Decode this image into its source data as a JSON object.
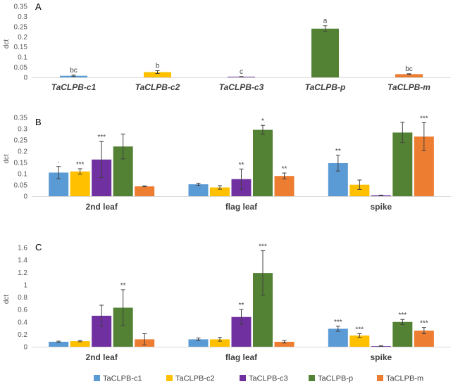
{
  "colors": {
    "TaCLPB-c1": "#5B9BD5",
    "TaCLPB-c2": "#FFC000",
    "TaCLPB-c3": "#7030A0",
    "TaCLPB-p": "#548235",
    "TaCLPB-m": "#ED7D31",
    "axis": "#d9d9d9",
    "text": "#404040"
  },
  "legend": {
    "entries": [
      "TaCLPB-c1",
      "TaCLPB-c2",
      "TaCLPB-c3",
      "TaCLPB-p",
      "TaCLPB-m"
    ]
  },
  "chart_data": [
    {
      "panel": "A",
      "type": "bar",
      "ylabel": "dct",
      "ylim": [
        0,
        0.35
      ],
      "yticks": [
        "0",
        "0.05",
        "0.1",
        "0.15",
        "0.2",
        "0.25",
        "0.3",
        "0.35"
      ],
      "categories": [
        "TaCLPB-c1",
        "TaCLPB-c2",
        "TaCLPB-c3",
        "TaCLPB-p",
        "TaCLPB-m"
      ],
      "values": [
        0.008,
        0.026,
        0.003,
        0.24,
        0.016
      ],
      "errors": [
        0.003,
        0.007,
        0.001,
        0.014,
        0.002
      ],
      "annotations": [
        "bc",
        "b",
        "c",
        "a",
        "bc"
      ]
    },
    {
      "panel": "B",
      "type": "bar",
      "ylabel": "dct",
      "ylim": [
        0,
        0.35
      ],
      "yticks": [
        "0",
        "0.05",
        "0.1",
        "0.15",
        "0.2",
        "0.25",
        "0.3",
        "0.35"
      ],
      "categories": [
        "2nd leaf",
        "flag leaf",
        "spike"
      ],
      "series": [
        {
          "name": "TaCLPB-c1",
          "values": [
            0.105,
            0.053,
            0.147
          ],
          "errors": [
            0.027,
            0.005,
            0.035
          ],
          "annotations": [
            "·",
            "",
            "**"
          ]
        },
        {
          "name": "TaCLPB-c2",
          "values": [
            0.11,
            0.039,
            0.051
          ],
          "errors": [
            0.012,
            0.008,
            0.021
          ],
          "annotations": [
            "***",
            "",
            ""
          ]
        },
        {
          "name": "TaCLPB-c3",
          "values": [
            0.163,
            0.076,
            0.004
          ],
          "errors": [
            0.08,
            0.045,
            0.001
          ],
          "annotations": [
            "***",
            "**",
            ""
          ]
        },
        {
          "name": "TaCLPB-p",
          "values": [
            0.221,
            0.295,
            0.283
          ],
          "errors": [
            0.055,
            0.02,
            0.045
          ],
          "annotations": [
            "",
            "*",
            ""
          ]
        },
        {
          "name": "TaCLPB-m",
          "values": [
            0.044,
            0.09,
            0.265
          ],
          "errors": [
            0.002,
            0.013,
            0.062
          ],
          "annotations": [
            "",
            "**",
            "***"
          ]
        }
      ]
    },
    {
      "panel": "C",
      "type": "bar",
      "ylabel": "dct",
      "ylim": [
        0,
        1.6
      ],
      "yticks": [
        "0",
        "0.2",
        "0.4",
        "0.6",
        "0.8",
        "1",
        "1.2",
        "1.4",
        "1.6"
      ],
      "categories": [
        "2nd leaf",
        "flag leaf",
        "spike"
      ],
      "series": [
        {
          "name": "TaCLPB-c1",
          "values": [
            0.08,
            0.12,
            0.29
          ],
          "errors": [
            0.01,
            0.02,
            0.04
          ],
          "annotations": [
            "",
            "",
            "***"
          ]
        },
        {
          "name": "TaCLPB-c2",
          "values": [
            0.09,
            0.12,
            0.18
          ],
          "errors": [
            0.01,
            0.03,
            0.03
          ],
          "annotations": [
            "",
            "",
            "***"
          ]
        },
        {
          "name": "TaCLPB-c3",
          "values": [
            0.5,
            0.48,
            0.01
          ],
          "errors": [
            0.17,
            0.12,
            0.005
          ],
          "annotations": [
            "",
            "**",
            ""
          ]
        },
        {
          "name": "TaCLPB-p",
          "values": [
            0.63,
            1.19,
            0.4
          ],
          "errors": [
            0.29,
            0.36,
            0.04
          ],
          "annotations": [
            "**",
            "***",
            "***"
          ]
        },
        {
          "name": "TaCLPB-m",
          "values": [
            0.12,
            0.08,
            0.26
          ],
          "errors": [
            0.09,
            0.02,
            0.05
          ],
          "annotations": [
            "",
            "",
            "***"
          ]
        }
      ]
    }
  ]
}
